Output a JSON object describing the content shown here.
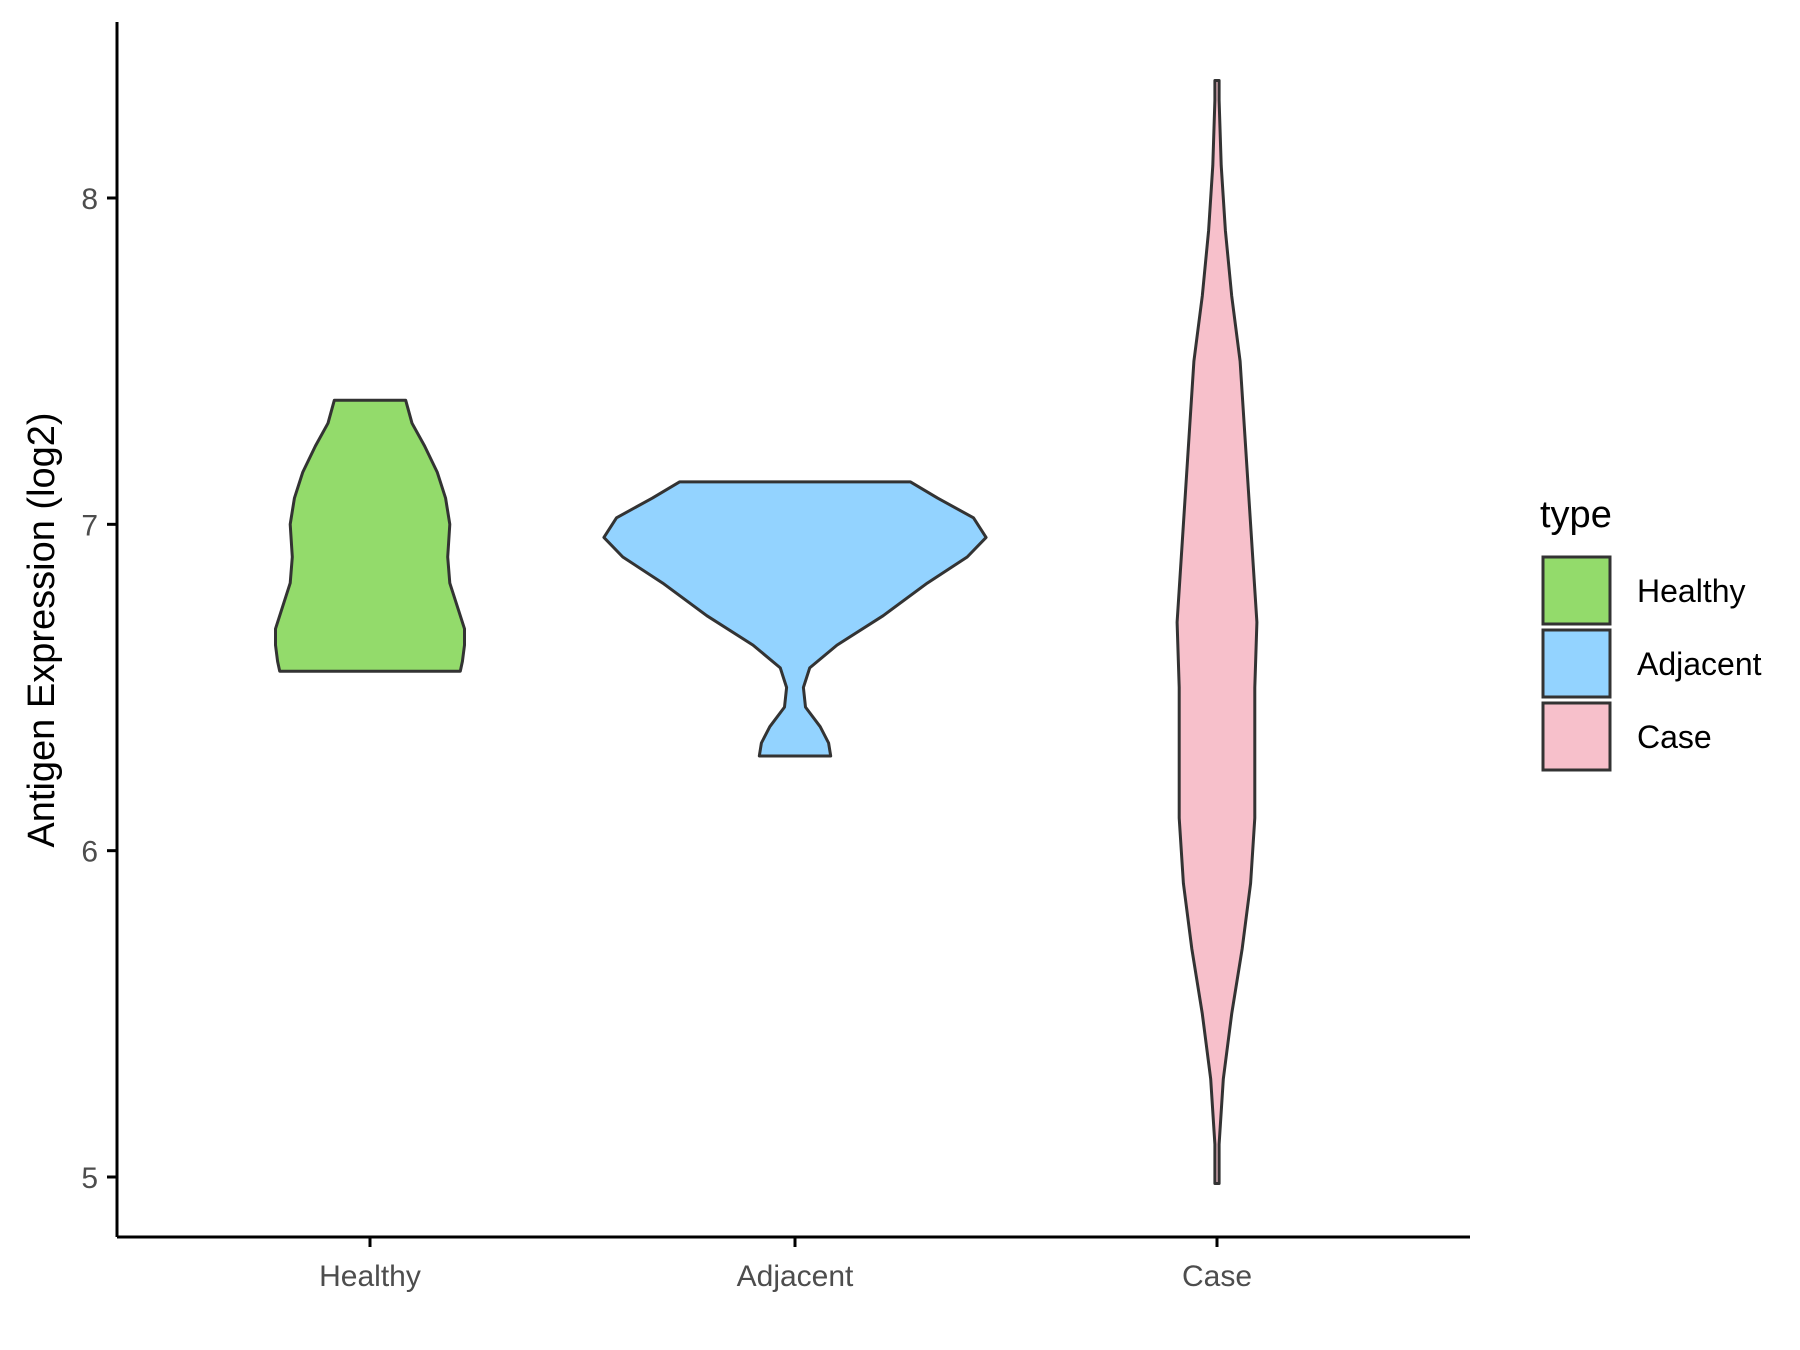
{
  "chart_data": {
    "type": "violin",
    "ylabel": "Antigen Expression (log2)",
    "xlabel": "",
    "categories": [
      "Healthy",
      "Adjacent",
      "Case"
    ],
    "ylim": [
      4.8,
      8.53
    ],
    "yticks": [
      5,
      6,
      7,
      8
    ],
    "grid": false,
    "legend": {
      "title": "type",
      "position": "right",
      "entries": [
        "Healthy",
        "Adjacent",
        "Case"
      ]
    },
    "series": [
      {
        "name": "Healthy",
        "color": "#93DB6B",
        "min": 6.55,
        "max": 7.38,
        "density": [
          [
            6.55,
            0.43
          ],
          [
            6.58,
            0.44
          ],
          [
            6.63,
            0.45
          ],
          [
            6.68,
            0.45
          ],
          [
            6.74,
            0.42
          ],
          [
            6.82,
            0.38
          ],
          [
            6.9,
            0.37
          ],
          [
            7.0,
            0.38
          ],
          [
            7.08,
            0.36
          ],
          [
            7.16,
            0.32
          ],
          [
            7.24,
            0.26
          ],
          [
            7.31,
            0.2
          ],
          [
            7.38,
            0.17
          ]
        ]
      },
      {
        "name": "Adjacent",
        "color": "#93D3FF",
        "min": 6.29,
        "max": 7.13,
        "density": [
          [
            6.29,
            0.17
          ],
          [
            6.33,
            0.16
          ],
          [
            6.38,
            0.12
          ],
          [
            6.44,
            0.05
          ],
          [
            6.5,
            0.04
          ],
          [
            6.56,
            0.07
          ],
          [
            6.63,
            0.2
          ],
          [
            6.72,
            0.42
          ],
          [
            6.82,
            0.63
          ],
          [
            6.9,
            0.82
          ],
          [
            6.96,
            0.91
          ],
          [
            7.02,
            0.85
          ],
          [
            7.08,
            0.68
          ],
          [
            7.13,
            0.55
          ]
        ]
      },
      {
        "name": "Case",
        "color": "#F7C0CB",
        "min": 4.98,
        "max": 8.36,
        "density": [
          [
            4.98,
            0.01
          ],
          [
            5.1,
            0.01
          ],
          [
            5.3,
            0.03
          ],
          [
            5.5,
            0.07
          ],
          [
            5.7,
            0.12
          ],
          [
            5.9,
            0.16
          ],
          [
            6.1,
            0.18
          ],
          [
            6.3,
            0.18
          ],
          [
            6.5,
            0.18
          ],
          [
            6.7,
            0.19
          ],
          [
            6.9,
            0.17
          ],
          [
            7.1,
            0.15
          ],
          [
            7.3,
            0.13
          ],
          [
            7.5,
            0.11
          ],
          [
            7.7,
            0.07
          ],
          [
            7.9,
            0.04
          ],
          [
            8.1,
            0.02
          ],
          [
            8.3,
            0.01
          ],
          [
            8.36,
            0.01
          ]
        ]
      }
    ]
  }
}
